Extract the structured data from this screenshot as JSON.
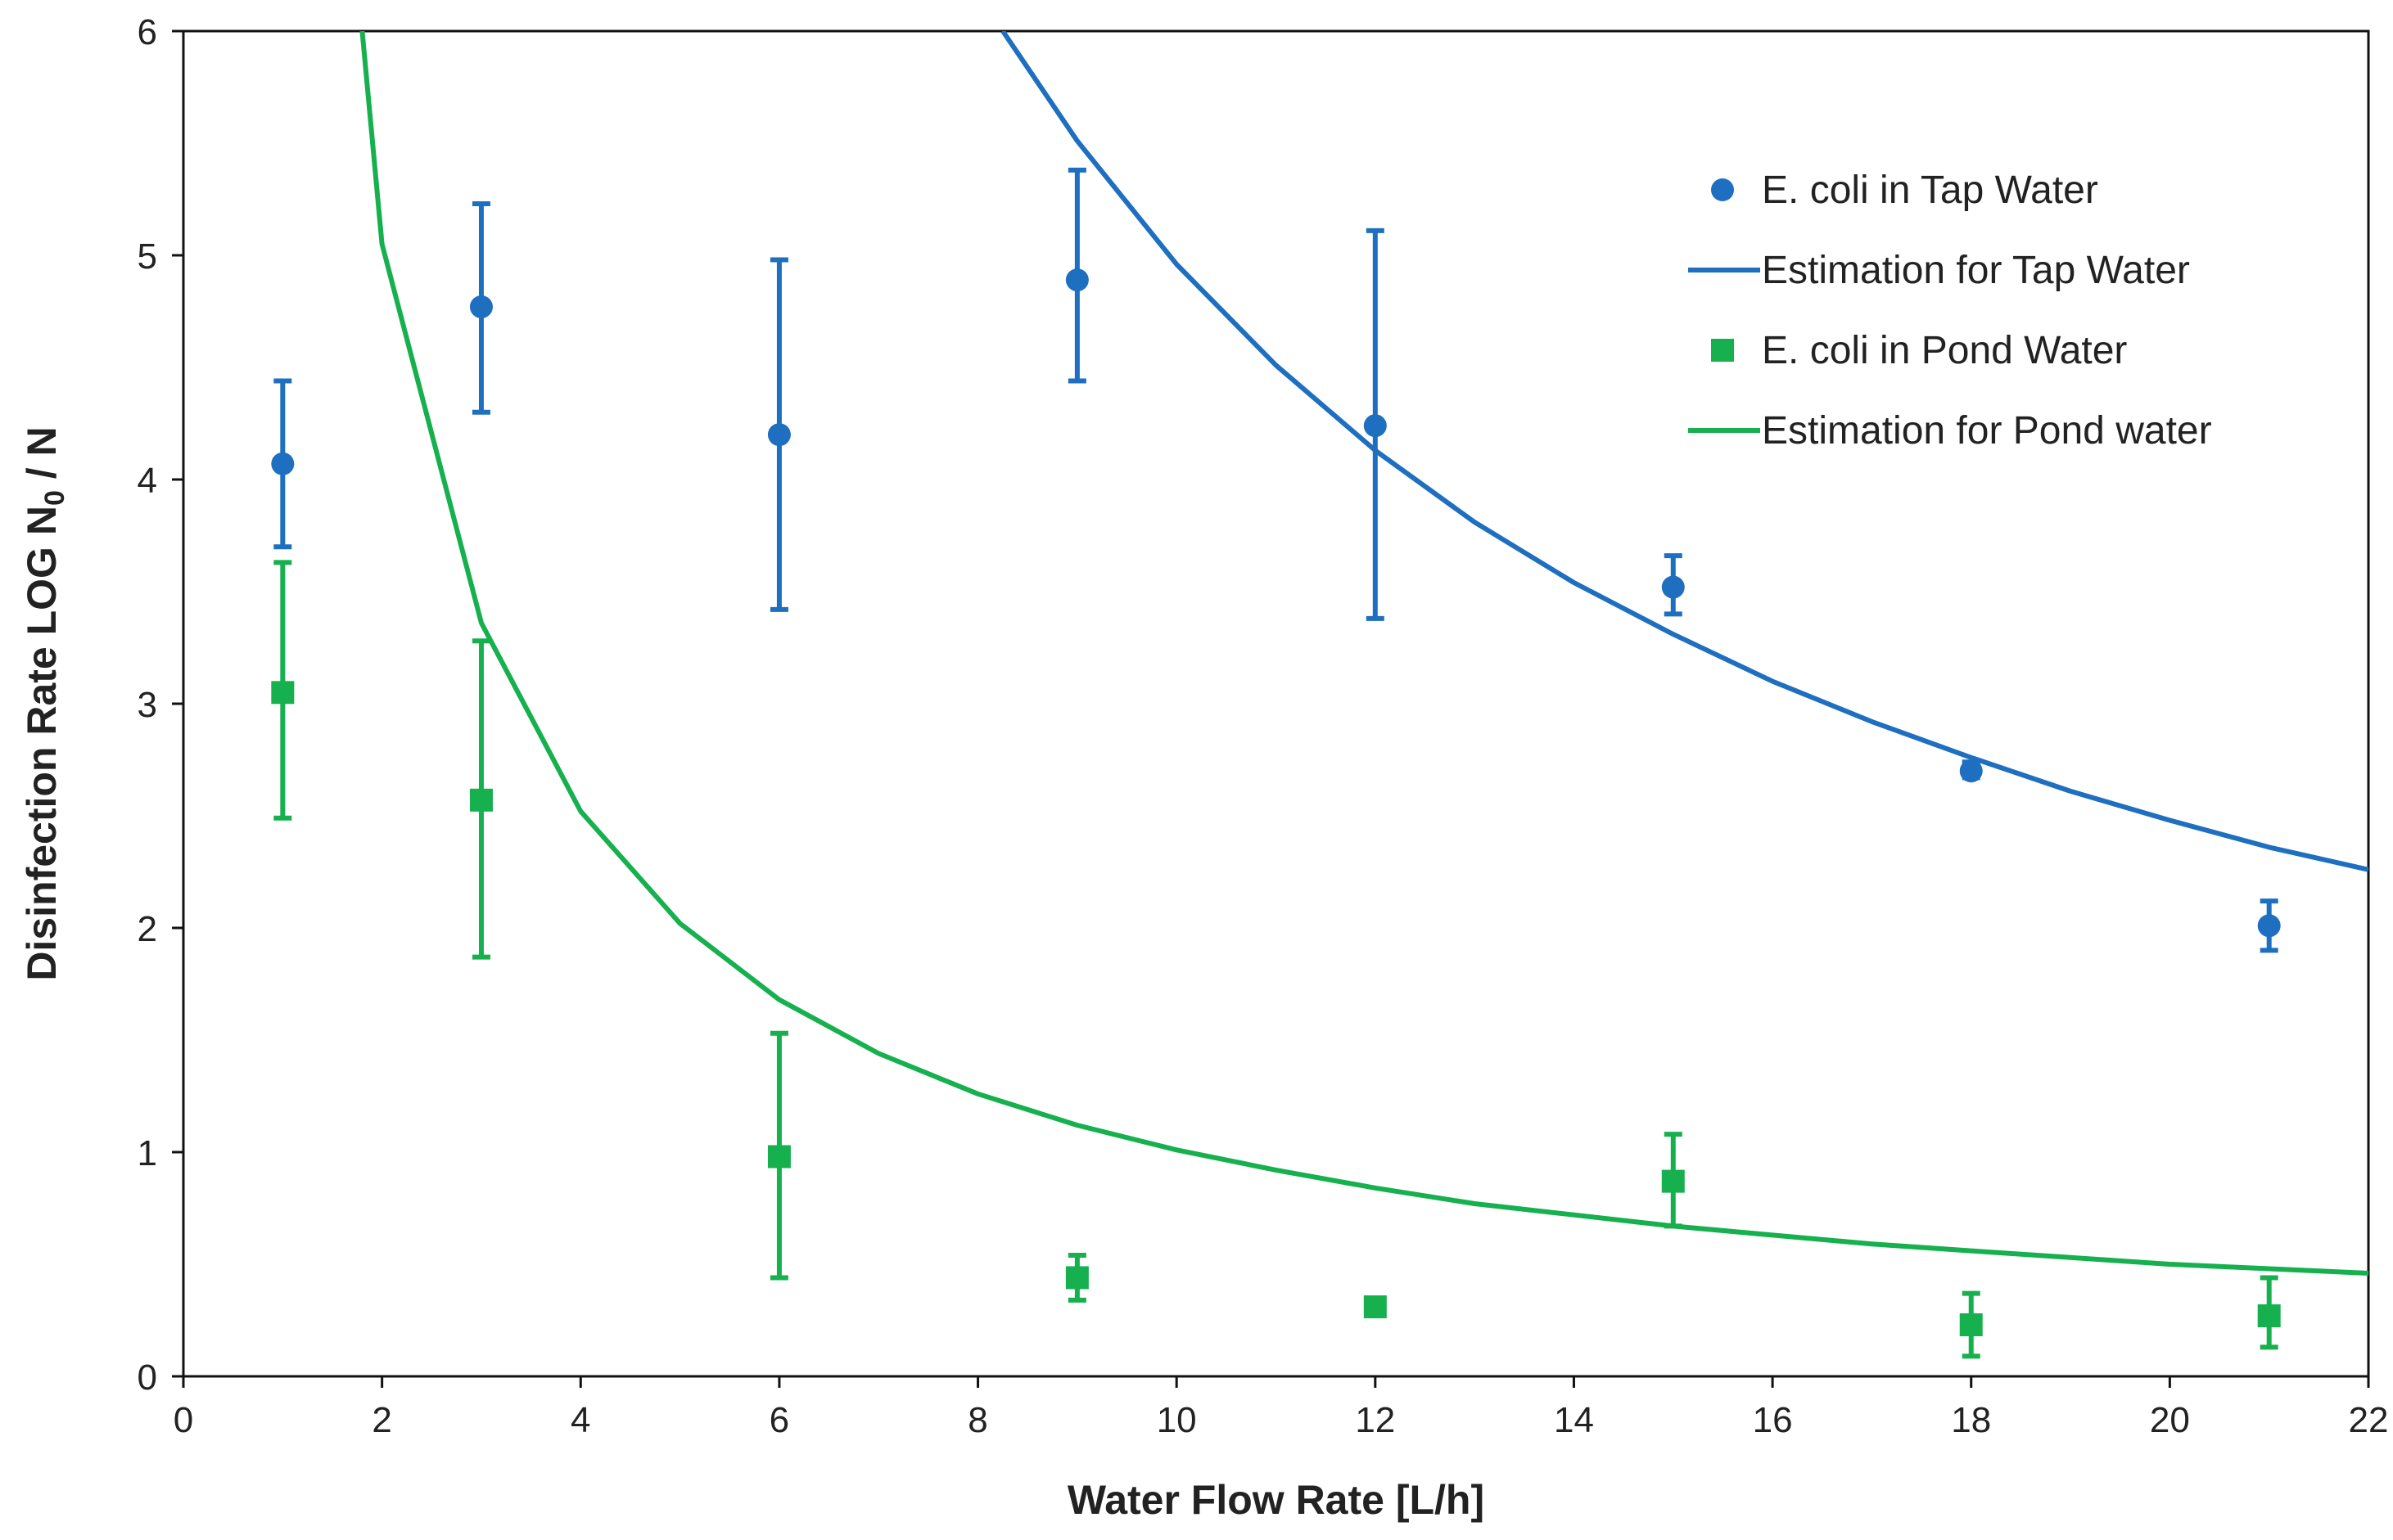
{
  "chart_data": {
    "type": "scatter",
    "title": "",
    "xlabel": "Water Flow Rate [L/h]",
    "ylabel": {
      "main": "Disinfection Rate LOG N",
      "subscript": "0",
      "suffix": " / N"
    },
    "xlim": [
      0,
      22
    ],
    "ylim": [
      0,
      6
    ],
    "xticks": [
      0,
      2,
      4,
      6,
      8,
      10,
      12,
      14,
      16,
      18,
      20,
      22
    ],
    "yticks": [
      0,
      1,
      2,
      3,
      4,
      5,
      6
    ],
    "grid": false,
    "legend_position": "top-right",
    "series": [
      {
        "name": "E. coli in Tap Water",
        "kind": "points",
        "marker": "circle",
        "color": "#1f6fc0",
        "points": [
          {
            "x": 1,
            "y": 4.07,
            "err_low": 3.7,
            "err_high": 4.44
          },
          {
            "x": 3,
            "y": 4.77,
            "err_low": 4.3,
            "err_high": 5.23
          },
          {
            "x": 6,
            "y": 4.2,
            "err_low": 3.42,
            "err_high": 4.98
          },
          {
            "x": 9,
            "y": 4.89,
            "err_low": 4.44,
            "err_high": 5.38
          },
          {
            "x": 12,
            "y": 4.24,
            "err_low": 3.38,
            "err_high": 5.11
          },
          {
            "x": 15,
            "y": 3.52,
            "err_low": 3.4,
            "err_high": 3.66
          },
          {
            "x": 18,
            "y": 2.7,
            "err_low": 2.67,
            "err_high": 2.74
          },
          {
            "x": 21,
            "y": 2.01,
            "err_low": 1.9,
            "err_high": 2.12
          }
        ]
      },
      {
        "name": "Estimation for Tap Water",
        "kind": "line",
        "color": "#1f6fc0",
        "points": [
          {
            "x": 8.25,
            "y": 6.0
          },
          {
            "x": 9,
            "y": 5.51
          },
          {
            "x": 10,
            "y": 4.96
          },
          {
            "x": 11,
            "y": 4.51
          },
          {
            "x": 12,
            "y": 4.13
          },
          {
            "x": 13,
            "y": 3.81
          },
          {
            "x": 14,
            "y": 3.54
          },
          {
            "x": 15,
            "y": 3.31
          },
          {
            "x": 16,
            "y": 3.1
          },
          {
            "x": 17,
            "y": 2.92
          },
          {
            "x": 18,
            "y": 2.76
          },
          {
            "x": 19,
            "y": 2.61
          },
          {
            "x": 20,
            "y": 2.48
          },
          {
            "x": 21,
            "y": 2.36
          },
          {
            "x": 22,
            "y": 2.26
          }
        ]
      },
      {
        "name": "E. coli in Pond Water",
        "kind": "points",
        "marker": "square",
        "color": "#16b04e",
        "points": [
          {
            "x": 1,
            "y": 3.05,
            "err_low": 2.49,
            "err_high": 3.63
          },
          {
            "x": 3,
            "y": 2.57,
            "err_low": 1.87,
            "err_high": 3.28
          },
          {
            "x": 6,
            "y": 0.98,
            "err_low": 0.44,
            "err_high": 1.53
          },
          {
            "x": 9,
            "y": 0.44,
            "err_low": 0.34,
            "err_high": 0.54
          },
          {
            "x": 12,
            "y": 0.31,
            "err_low": 0.31,
            "err_high": 0.31
          },
          {
            "x": 15,
            "y": 0.87,
            "err_low": 0.67,
            "err_high": 1.08
          },
          {
            "x": 18,
            "y": 0.23,
            "err_low": 0.09,
            "err_high": 0.37
          },
          {
            "x": 21,
            "y": 0.27,
            "err_low": 0.13,
            "err_high": 0.44
          }
        ]
      },
      {
        "name": "Estimation for Pond water",
        "kind": "line",
        "color": "#16b04e",
        "points": [
          {
            "x": 1.8,
            "y": 6.0
          },
          {
            "x": 2,
            "y": 5.05
          },
          {
            "x": 3,
            "y": 3.36
          },
          {
            "x": 4,
            "y": 2.52
          },
          {
            "x": 5,
            "y": 2.02
          },
          {
            "x": 6,
            "y": 1.68
          },
          {
            "x": 7,
            "y": 1.44
          },
          {
            "x": 8,
            "y": 1.26
          },
          {
            "x": 9,
            "y": 1.12
          },
          {
            "x": 10,
            "y": 1.01
          },
          {
            "x": 11,
            "y": 0.92
          },
          {
            "x": 12,
            "y": 0.84
          },
          {
            "x": 13,
            "y": 0.77
          },
          {
            "x": 14,
            "y": 0.72
          },
          {
            "x": 15,
            "y": 0.67
          },
          {
            "x": 16,
            "y": 0.63
          },
          {
            "x": 17,
            "y": 0.59
          },
          {
            "x": 18,
            "y": 0.56
          },
          {
            "x": 19,
            "y": 0.53
          },
          {
            "x": 20,
            "y": 0.5
          },
          {
            "x": 21,
            "y": 0.48
          },
          {
            "x": 22,
            "y": 0.46
          }
        ]
      }
    ]
  }
}
